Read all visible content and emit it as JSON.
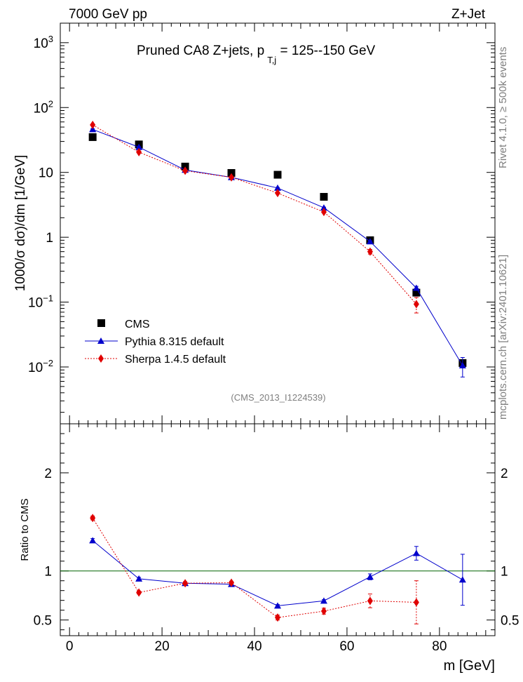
{
  "header": {
    "left": "7000 GeV pp",
    "right": "Z+Jet"
  },
  "side_label_top": "Rivet 4.1.0, ≥ 500k events",
  "side_label_bottom": "mcplots.cern.ch [arXiv:2401.10621]",
  "watermark": "(CMS_2013_I1224539)",
  "colors": {
    "cms": "#000000",
    "pythia": "#0000cc",
    "sherpa": "#e00000",
    "ratio_ref": "#006400"
  },
  "chart_data": [
    {
      "type": "scatter",
      "name": "main",
      "yscale": "log",
      "title_main": "Pruned CA8 Z+jets, p",
      "title_sub": "T,j",
      "title_tail": " = 125--150 GeV",
      "ylabel": "1000/σ  dσ)/dm [1/GeV]",
      "xlabel": "",
      "xlim": [
        -2,
        92
      ],
      "ylim": [
        0.00133,
        2000
      ],
      "yticks": [
        {
          "value": 0.01,
          "base": "10",
          "exp": "−2"
        },
        {
          "value": 0.1,
          "base": "10",
          "exp": "−1"
        },
        {
          "value": 1,
          "base": "1",
          "exp": ""
        },
        {
          "value": 10,
          "base": "10",
          "exp": ""
        },
        {
          "value": 100,
          "base": "10",
          "exp": "2"
        },
        {
          "value": 1000,
          "base": "10",
          "exp": "3"
        }
      ],
      "legend": {
        "placement": "bottom-left",
        "entries": [
          "CMS",
          "Pythia 8.315 default",
          "Sherpa 1.4.5 default"
        ]
      },
      "series": [
        {
          "name": "CMS",
          "style": "square",
          "x": [
            5,
            15,
            25,
            35,
            45,
            55,
            65,
            75,
            85
          ],
          "y": [
            35,
            27,
            12.3,
            9.8,
            9.2,
            4.2,
            0.9,
            0.14,
            0.0115
          ],
          "err": [
            0,
            0,
            0,
            0,
            0,
            0,
            0,
            0,
            0
          ]
        },
        {
          "name": "Pythia 8.315 default",
          "style": "triangle",
          "x": [
            5,
            15,
            25,
            35,
            45,
            55,
            65,
            75,
            85
          ],
          "y": [
            46,
            24.5,
            10.9,
            8.4,
            5.75,
            2.85,
            0.86,
            0.165,
            0.0105
          ],
          "err": [
            1,
            0.5,
            0.2,
            0.15,
            0.1,
            0.06,
            0.02,
            0.01,
            0.0035
          ]
        },
        {
          "name": "Sherpa 1.4.5 default",
          "style": "diamond",
          "x": [
            5,
            15,
            25,
            35,
            45,
            55,
            65,
            75,
            85
          ],
          "y": [
            54,
            20.5,
            10.6,
            8.4,
            4.8,
            2.45,
            0.6,
            0.093,
            null
          ],
          "err": [
            1,
            0.4,
            0.2,
            0.15,
            0.1,
            0.05,
            0.05,
            0.025,
            null
          ]
        }
      ]
    },
    {
      "type": "scatter",
      "name": "ratio",
      "yscale": "linear",
      "ylabel": "Ratio to CMS",
      "xlabel": "m [GeV]",
      "xlim": [
        -2,
        92
      ],
      "ylim": [
        0.34,
        2.5
      ],
      "xticks": [
        0,
        20,
        40,
        60,
        80
      ],
      "yticks": [
        0.5,
        1,
        2
      ],
      "yticklabels": [
        "0.5",
        "1",
        "2"
      ],
      "reference": 1,
      "series": [
        {
          "name": "Pythia 8.315 default",
          "style": "triangle",
          "x": [
            5,
            15,
            25,
            35,
            45,
            55,
            65,
            75,
            85
          ],
          "y": [
            1.31,
            0.92,
            0.875,
            0.865,
            0.645,
            0.695,
            0.94,
            1.18,
            0.91
          ],
          "err": [
            0.02,
            0.015,
            0.015,
            0.015,
            0.012,
            0.012,
            0.03,
            0.07,
            0.26
          ]
        },
        {
          "name": "Sherpa 1.4.5 default",
          "style": "diamond",
          "x": [
            5,
            15,
            25,
            35,
            45,
            55,
            65,
            75
          ],
          "y": [
            1.54,
            0.78,
            0.875,
            0.88,
            0.525,
            0.59,
            0.695,
            0.68
          ],
          "err": [
            0.02,
            0.015,
            0.015,
            0.015,
            0.025,
            0.03,
            0.07,
            0.22
          ]
        }
      ]
    }
  ]
}
